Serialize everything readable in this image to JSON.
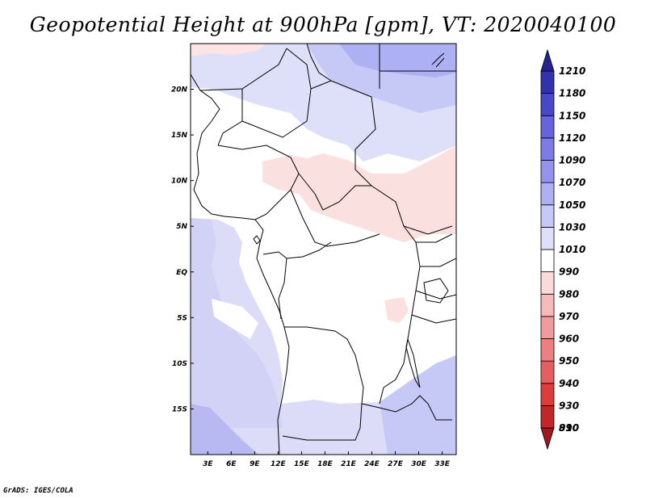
{
  "chart_data": {
    "type": "heatmap",
    "title": "Geopotential Height at 900hPa [gpm], VT: 2020040100",
    "x_axis": {
      "label": "",
      "range": [
        0,
        35
      ],
      "ticks": [
        {
          "value": 3,
          "label": "3E"
        },
        {
          "value": 6,
          "label": "6E"
        },
        {
          "value": 9,
          "label": "9E"
        },
        {
          "value": 12,
          "label": "12E"
        },
        {
          "value": 15,
          "label": "15E"
        },
        {
          "value": 18,
          "label": "18E"
        },
        {
          "value": 21,
          "label": "21E"
        },
        {
          "value": 24,
          "label": "24E"
        },
        {
          "value": 27,
          "label": "27E"
        },
        {
          "value": 30,
          "label": "30E"
        },
        {
          "value": 33,
          "label": "33E"
        }
      ]
    },
    "y_axis": {
      "label": "",
      "range": [
        -20,
        25
      ],
      "ticks": [
        {
          "value": 20,
          "label": "20N"
        },
        {
          "value": 15,
          "label": "15N"
        },
        {
          "value": 10,
          "label": "10N"
        },
        {
          "value": 5,
          "label": "5N"
        },
        {
          "value": 0,
          "label": "EQ"
        },
        {
          "value": -5,
          "label": "5S"
        },
        {
          "value": -10,
          "label": "10S"
        },
        {
          "value": -15,
          "label": "15S"
        }
      ]
    },
    "colorbar": {
      "levels": [
        890,
        910,
        930,
        940,
        950,
        960,
        970,
        980,
        990,
        1010,
        1030,
        1050,
        1070,
        1090,
        1120,
        1150,
        1180,
        1210
      ],
      "colors": [
        "#a0181c",
        "#c0262a",
        "#dc3c3c",
        "#e46060",
        "#ec8080",
        "#f09c9c",
        "#f6baba",
        "#fadada",
        "#ffffff",
        "#dedff8",
        "#c6c8f6",
        "#aeb0f4",
        "#9494ee",
        "#7c7ce6",
        "#6464dc",
        "#4848c8",
        "#3232aa",
        "#242490"
      ]
    },
    "field_regions": [
      {
        "level": 1030,
        "desc": "western ocean and south-west"
      },
      {
        "level": 1050,
        "desc": "far south-west corner"
      },
      {
        "level": 1030,
        "desc": "north-east Sahara"
      },
      {
        "level": 1050,
        "desc": "north-east corner"
      },
      {
        "level": 980,
        "desc": "central belt 5N-12N"
      },
      {
        "level": 1010,
        "desc": "south-east and northern band"
      }
    ]
  },
  "credit": "GrADS: IGES/COLA"
}
